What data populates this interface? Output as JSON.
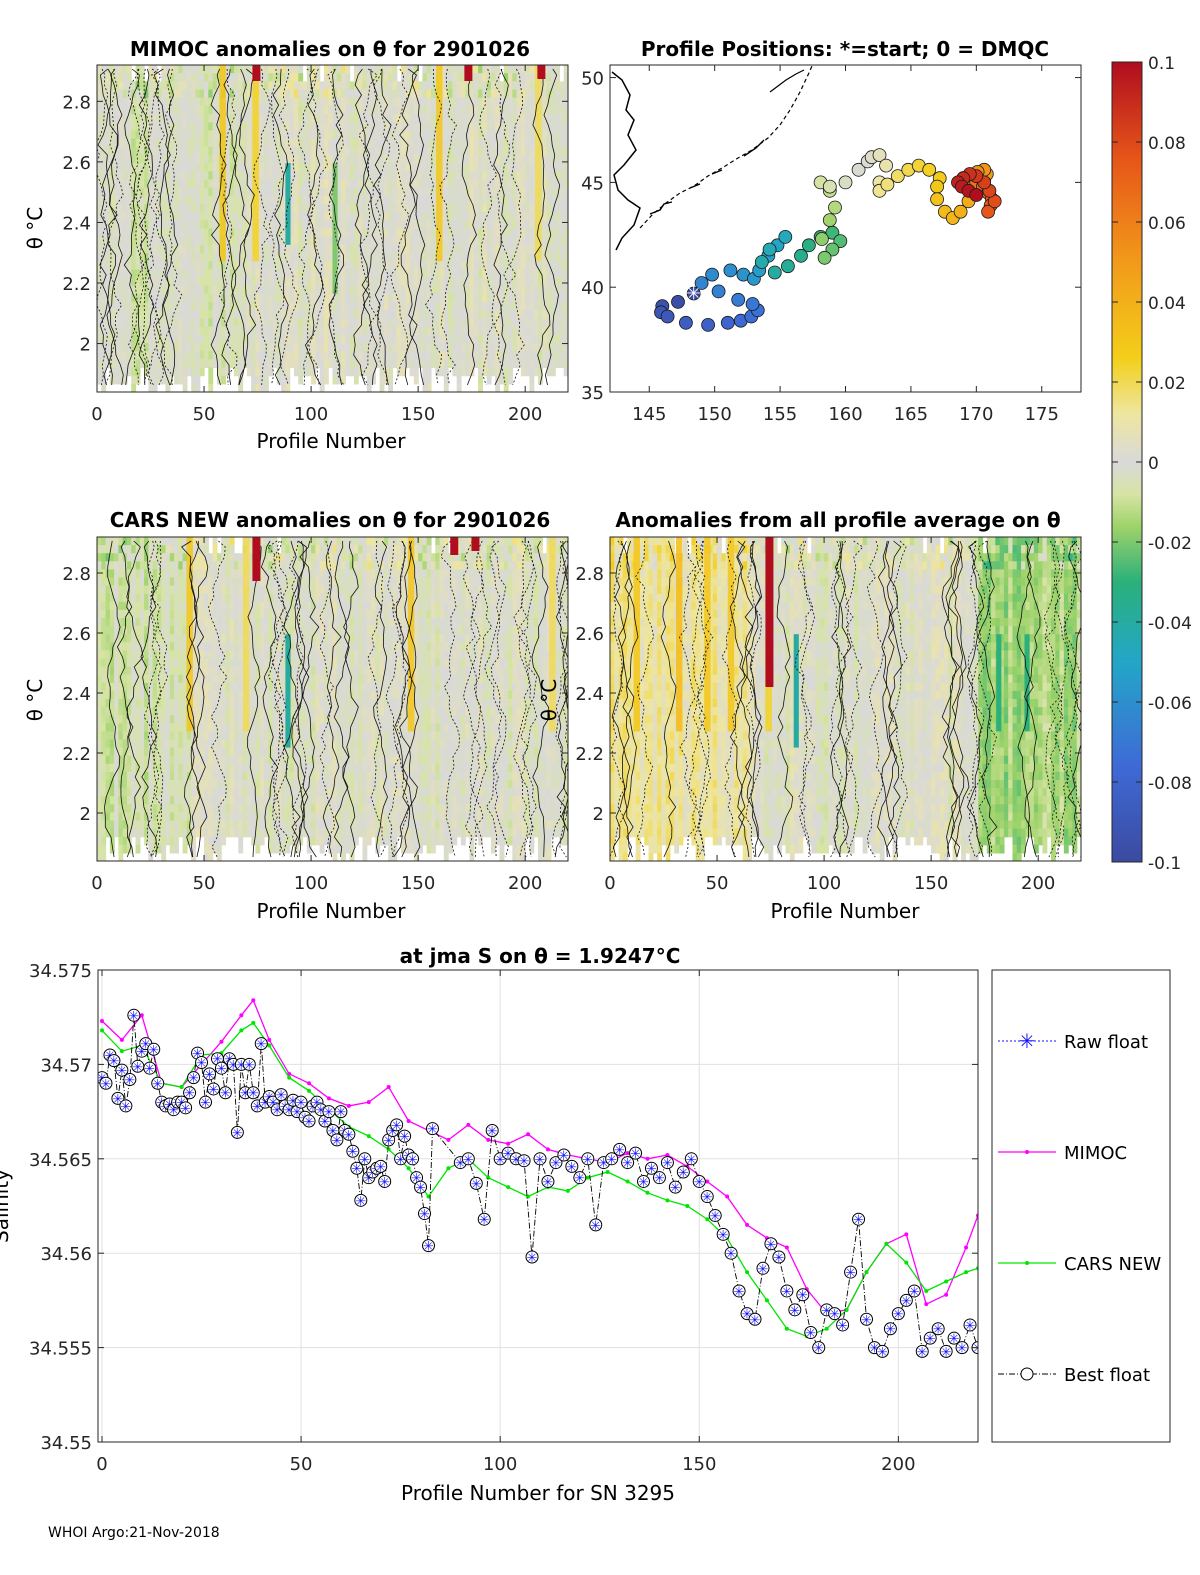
{
  "footer": "WHOI Argo:21-Nov-2018",
  "colors": {
    "mimoc": "#ff00ff",
    "cars": "#00e600",
    "raw": "#1010ff",
    "best": "#000000",
    "grid": "#e1e1e1",
    "map_coast": "#000000"
  },
  "chart_data": [
    {
      "id": "mimoc",
      "type": "heatmap",
      "title": "MIMOC anomalies on θ  for 2901026",
      "xlabel": "Profile Number",
      "ylabel": "θ °C",
      "xlim": [
        0,
        220
      ],
      "ylim": [
        1.84,
        2.92
      ],
      "xticks": [
        "0",
        "50",
        "100",
        "150",
        "200"
      ],
      "yticks": [
        "2",
        "2.2",
        "2.4",
        "2.6",
        "2.8"
      ]
    },
    {
      "id": "positions",
      "type": "scatter",
      "title": "Profile Positions: *=start; 0 = DMQC",
      "xlabel": "",
      "ylabel": "",
      "xlim": [
        142,
        178
      ],
      "ylim": [
        35,
        50.6
      ],
      "xticks": [
        "145",
        "150",
        "155",
        "160",
        "165",
        "170",
        "175"
      ],
      "yticks": [
        "35",
        "40",
        "45",
        "50"
      ],
      "start": [
        148.4,
        39.7
      ],
      "track_lon": [
        148.4,
        147.2,
        146.0,
        145.9,
        146.4,
        147.8,
        149.5,
        151.0,
        152.0,
        152.8,
        153.3,
        152.9,
        151.8,
        150.3,
        149.0,
        149.8,
        151.2,
        152.2,
        153.0,
        153.4,
        154.1,
        154.8,
        155.4,
        154.2,
        153.6,
        154.6,
        155.6,
        156.6,
        157.2,
        158.1,
        159.0,
        159.6,
        159.0,
        158.4,
        158.2,
        158.8,
        159.2,
        158.8,
        158.1,
        158.8,
        160.0,
        161.0,
        161.7,
        162.0,
        162.6,
        163.1,
        162.6,
        162.6,
        163.2,
        164.0,
        164.8,
        165.6,
        166.4,
        167.2,
        167.0,
        167.0,
        167.6,
        168.2,
        168.8,
        169.4,
        170.0,
        170.6,
        170.8,
        170.6,
        170.1,
        169.5,
        169.0,
        169.3,
        170.0,
        170.5,
        170.9,
        171.2,
        171.1,
        170.9,
        171.4,
        171.0,
        170.6,
        170.0,
        169.5,
        169.0,
        168.6,
        168.9,
        169.4,
        170.0
      ]
    },
    {
      "id": "cars",
      "type": "heatmap",
      "title": "CARS NEW anomalies on θ for 2901026",
      "xlabel": "Profile Number",
      "ylabel": "θ °C",
      "xlim": [
        0,
        220
      ],
      "ylim": [
        1.84,
        2.92
      ],
      "xticks": [
        "0",
        "50",
        "100",
        "150",
        "200"
      ],
      "yticks": [
        "2",
        "2.2",
        "2.4",
        "2.6",
        "2.8"
      ]
    },
    {
      "id": "avg",
      "type": "heatmap",
      "title": "Anomalies from all profile average on θ",
      "xlabel": "Profile Number",
      "ylabel": "θ °C",
      "xlim": [
        0,
        220
      ],
      "ylim": [
        1.84,
        2.92
      ],
      "xticks": [
        "0",
        "50",
        "100",
        "150",
        "200"
      ],
      "yticks": [
        "2",
        "2.2",
        "2.4",
        "2.6",
        "2.8"
      ]
    },
    {
      "id": "colorbar",
      "type": "colorbar",
      "range": [
        -0.1,
        0.1
      ],
      "ticks": [
        "0.1",
        "0.08",
        "0.06",
        "0.04",
        "0.02",
        "0",
        "-0.02",
        "-0.04",
        "-0.06",
        "-0.08",
        "-0.1"
      ]
    },
    {
      "id": "salinity",
      "type": "line",
      "title": "at jma S on θ = 1.9247°C",
      "xlabel": "Profile Number for SN 3295",
      "ylabel": "Salinity",
      "xlim": [
        -1,
        220
      ],
      "ylim": [
        34.55,
        34.575
      ],
      "xticks": [
        "0",
        "50",
        "100",
        "150",
        "200"
      ],
      "yticks": [
        "34.55",
        "34.555",
        "34.56",
        "34.565",
        "34.57",
        "34.575"
      ],
      "legend": [
        "Raw float",
        "MIMOC",
        "CARS NEW",
        "Best float"
      ],
      "mimoc_x": [
        0,
        5,
        10,
        15,
        20,
        25,
        30,
        35,
        38,
        42,
        47,
        52,
        57,
        62,
        67,
        72,
        77,
        82,
        87,
        92,
        97,
        102,
        107,
        112,
        117,
        122,
        127,
        132,
        137,
        142,
        147,
        152,
        157,
        162,
        167,
        172,
        177,
        182,
        187,
        192,
        197,
        202,
        207,
        212,
        217,
        220
      ],
      "mimoc_y": [
        34.5723,
        34.5713,
        34.5726,
        34.569,
        34.5688,
        34.57,
        34.5712,
        34.5726,
        34.5734,
        34.5713,
        34.5695,
        34.569,
        34.5682,
        34.5678,
        34.568,
        34.5688,
        34.567,
        34.5665,
        34.566,
        34.5668,
        34.566,
        34.5658,
        34.5663,
        34.5655,
        34.5652,
        34.565,
        34.5648,
        34.5653,
        34.565,
        34.5652,
        34.5646,
        34.5638,
        34.563,
        34.5615,
        34.5608,
        34.5603,
        34.5581,
        34.5568,
        34.557,
        34.559,
        34.5605,
        34.561,
        34.5573,
        34.5578,
        34.5603,
        34.562
      ],
      "cars_x": [
        0,
        5,
        10,
        15,
        20,
        25,
        30,
        35,
        38,
        42,
        47,
        52,
        57,
        62,
        67,
        72,
        77,
        82,
        87,
        92,
        97,
        102,
        107,
        112,
        117,
        122,
        127,
        132,
        137,
        142,
        147,
        152,
        157,
        162,
        167,
        172,
        177,
        182,
        187,
        192,
        197,
        202,
        207,
        212,
        217,
        220
      ],
      "cars_y": [
        34.5718,
        34.5707,
        34.571,
        34.569,
        34.5688,
        34.5705,
        34.5706,
        34.5718,
        34.5722,
        34.571,
        34.5693,
        34.5686,
        34.5676,
        34.5667,
        34.5662,
        34.5655,
        34.5645,
        34.563,
        34.5645,
        34.565,
        34.564,
        34.5635,
        34.563,
        34.5635,
        34.5633,
        34.564,
        34.5643,
        34.5638,
        34.5632,
        34.5628,
        34.5625,
        34.5618,
        34.5608,
        34.559,
        34.5575,
        34.556,
        34.5556,
        34.556,
        34.557,
        34.559,
        34.5605,
        34.5595,
        34.558,
        34.5585,
        34.559,
        34.5592
      ],
      "float_x": [
        0,
        1,
        2,
        3,
        4,
        5,
        6,
        7,
        8,
        9,
        10,
        11,
        12,
        13,
        14,
        15,
        16,
        17,
        18,
        19,
        20,
        21,
        22,
        23,
        24,
        25,
        26,
        27,
        28,
        29,
        30,
        31,
        32,
        33,
        34,
        35,
        36,
        37,
        38,
        39,
        40,
        41,
        42,
        43,
        44,
        45,
        46,
        47,
        48,
        49,
        50,
        51,
        52,
        53,
        54,
        55,
        56,
        57,
        58,
        59,
        60,
        61,
        62,
        63,
        64,
        65,
        66,
        67,
        68,
        69,
        70,
        71,
        72,
        73,
        74,
        75,
        76,
        77,
        78,
        79,
        80,
        81,
        82,
        83,
        90,
        92,
        94,
        96,
        98,
        100,
        102,
        104,
        106,
        108,
        110,
        112,
        114,
        116,
        118,
        120,
        122,
        124,
        126,
        128,
        130,
        132,
        134,
        136,
        138,
        140,
        142,
        144,
        146,
        148,
        150,
        152,
        154,
        156,
        158,
        160,
        162,
        164,
        166,
        168,
        170,
        172,
        174,
        176,
        178,
        180,
        182,
        184,
        186,
        188,
        190,
        192,
        194,
        196,
        198,
        200,
        202,
        204,
        206,
        208,
        210,
        212,
        214,
        216,
        218,
        220
      ],
      "float_y": [
        34.5693,
        34.569,
        34.5705,
        34.5702,
        34.5682,
        34.5697,
        34.5678,
        34.5692,
        34.5726,
        34.5699,
        34.5707,
        34.5711,
        34.5698,
        34.5708,
        34.569,
        34.568,
        34.5678,
        34.5679,
        34.5676,
        34.568,
        34.568,
        34.5677,
        34.5685,
        34.5693,
        34.5706,
        34.5701,
        34.568,
        34.5695,
        34.5687,
        34.5703,
        34.5698,
        34.5685,
        34.5703,
        34.57,
        34.5664,
        34.57,
        34.5685,
        34.57,
        34.5685,
        34.5678,
        34.5711,
        34.568,
        34.5683,
        34.568,
        34.5676,
        34.5684,
        34.5678,
        34.5676,
        34.5681,
        34.5675,
        34.568,
        34.5672,
        34.567,
        34.5678,
        34.568,
        34.5676,
        34.567,
        34.5675,
        34.5665,
        34.566,
        34.5675,
        34.5665,
        34.5663,
        34.5654,
        34.5645,
        34.5628,
        34.565,
        34.564,
        34.5643,
        34.5645,
        34.5646,
        34.5638,
        34.566,
        34.5665,
        34.5668,
        34.565,
        34.5662,
        34.5652,
        34.565,
        34.564,
        34.5635,
        34.5621,
        34.5604,
        34.5666,
        34.5648,
        34.565,
        34.5637,
        34.5618,
        34.5665,
        34.565,
        34.5653,
        34.565,
        34.5649,
        34.5598,
        34.565,
        34.5638,
        34.5648,
        34.5652,
        34.5646,
        34.564,
        34.565,
        34.5615,
        34.5648,
        34.565,
        34.5655,
        34.5648,
        34.5653,
        34.5638,
        34.5645,
        34.564,
        34.5648,
        34.5635,
        34.5643,
        34.565,
        34.5638,
        34.563,
        34.562,
        34.561,
        34.56,
        34.558,
        34.5568,
        34.5565,
        34.5592,
        34.5605,
        34.5598,
        34.558,
        34.557,
        34.5578,
        34.5558,
        34.555,
        34.557,
        34.5568,
        34.5562,
        34.559,
        34.5618,
        34.5565,
        34.555,
        34.5548,
        34.556,
        34.5568,
        34.5575,
        34.558,
        34.5548,
        34.5555,
        34.556,
        34.5548,
        34.5555,
        34.555,
        34.5562,
        34.555,
        34.5533,
        34.5548,
        34.553,
        34.554
      ]
    }
  ]
}
